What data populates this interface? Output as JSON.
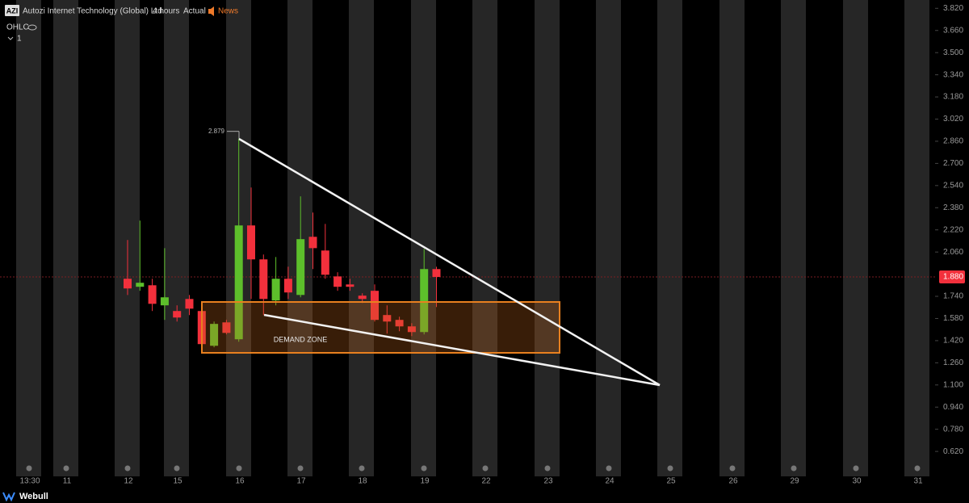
{
  "header": {
    "symbol": "AZI",
    "name": "Autozi Internet Technology (Global) Ltd.",
    "interval": "4 hours",
    "mode": "Actual",
    "news": "News",
    "indicator": "OHLC",
    "pane": "1",
    "brand": "Webull"
  },
  "chart_data": {
    "type": "candlestick",
    "open": [
      1.867,
      1.809,
      1.82,
      1.675,
      1.634,
      1.721,
      1.634,
      1.383,
      1.552,
      1.43,
      2.252,
      2.007,
      1.71,
      1.867,
      1.75,
      2.17,
      2.071,
      1.884,
      1.826,
      1.745,
      1.78,
      1.605,
      1.57,
      1.523,
      1.482,
      1.937
    ],
    "high": [
      2.147,
      2.287,
      1.867,
      2.088,
      1.675,
      1.75,
      1.692,
      1.558,
      1.57,
      2.879,
      2.526,
      2.042,
      2.024,
      1.954,
      2.462,
      2.345,
      2.263,
      1.914,
      1.867,
      1.762,
      1.826,
      1.675,
      1.593,
      1.546,
      2.083,
      1.954
    ],
    "low": [
      1.75,
      1.78,
      1.634,
      1.57,
      1.558,
      1.605,
      1.337,
      1.372,
      1.465,
      1.412,
      1.721,
      1.605,
      1.675,
      1.721,
      1.733,
      1.937,
      1.867,
      1.78,
      1.78,
      1.692,
      1.558,
      1.471,
      1.488,
      1.453,
      1.465,
      1.663
    ],
    "close": [
      1.797,
      1.838,
      1.686,
      1.733,
      1.587,
      1.651,
      1.395,
      1.541,
      1.476,
      2.252,
      2.007,
      1.721,
      1.867,
      1.768,
      2.153,
      2.088,
      1.896,
      1.809,
      1.809,
      1.721,
      1.57,
      1.558,
      1.523,
      1.482,
      1.937,
      1.88
    ],
    "up_color": "#5dbf2b",
    "down_color": "#f2303c",
    "x_labels": [
      "13:30",
      "11",
      "12",
      "15",
      "16",
      "17",
      "18",
      "19",
      "22",
      "23",
      "24",
      "25",
      "26",
      "29",
      "30",
      "31"
    ],
    "ylim": [
      0.44,
      3.88
    ],
    "yticks": [
      {
        "value": 3.82,
        "label": "3.820"
      },
      {
        "value": 3.66,
        "label": "3.660"
      },
      {
        "value": 3.5,
        "label": "3.500"
      },
      {
        "value": 3.34,
        "label": "3.340"
      },
      {
        "value": 3.18,
        "label": "3.180"
      },
      {
        "value": 3.02,
        "label": "3.020"
      },
      {
        "value": 2.86,
        "label": "2.860"
      },
      {
        "value": 2.7,
        "label": "2.700"
      },
      {
        "value": 2.54,
        "label": "2.540"
      },
      {
        "value": 2.38,
        "label": "2.380"
      },
      {
        "value": 2.22,
        "label": "2.220"
      },
      {
        "value": 2.06,
        "label": "2.060"
      },
      {
        "value": 1.74,
        "label": "1.740"
      },
      {
        "value": 1.58,
        "label": "1.580"
      },
      {
        "value": 1.42,
        "label": "1.420"
      },
      {
        "value": 1.26,
        "label": "1.260"
      },
      {
        "value": 1.1,
        "label": "1.100"
      },
      {
        "value": 0.94,
        "label": "0.940"
      },
      {
        "value": 0.78,
        "label": "0.780"
      },
      {
        "value": 0.62,
        "label": "0.620"
      }
    ],
    "last_price": {
      "value": 1.88,
      "label": "1.880"
    },
    "high_label": {
      "value": 2.879,
      "label": "2.879"
    },
    "annotation": "DEMAND ZONE"
  }
}
